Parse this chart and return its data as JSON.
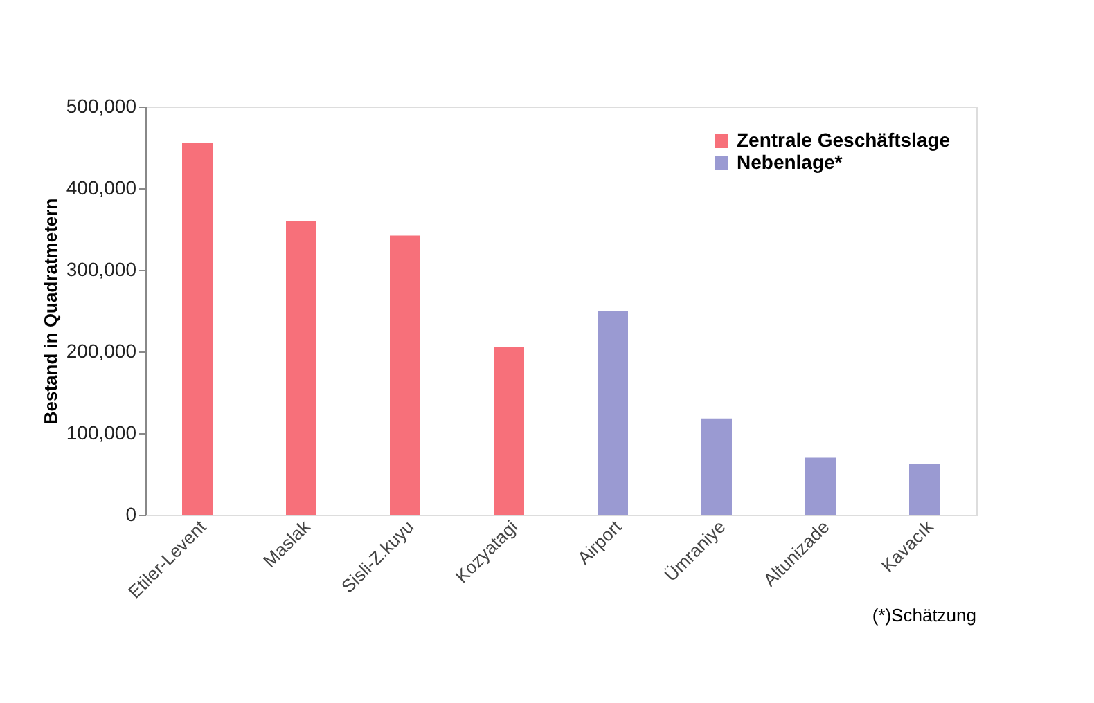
{
  "chart_data": {
    "type": "bar",
    "ylabel": "Bestand in Quadratmetern",
    "categories": [
      "Etiler-Levent",
      "Maslak",
      "Sisli-Z.kuyu",
      "Kozyatagi",
      "Airport",
      "Ümraniye",
      "Altunizade",
      "Kavacık"
    ],
    "series": [
      {
        "name": "Zentrale Geschäftslage",
        "color": "#f7707a",
        "values": [
          455000,
          360000,
          342000,
          205000,
          null,
          null,
          null,
          null
        ]
      },
      {
        "name": "Nebenlage*",
        "color": "#9a9ad2",
        "values": [
          null,
          null,
          null,
          null,
          250000,
          118000,
          70000,
          62000
        ]
      }
    ],
    "ylim": [
      0,
      500000
    ],
    "yticks": [
      {
        "value": 0,
        "label": "0"
      },
      {
        "value": 100000,
        "label": "100,000"
      },
      {
        "value": 200000,
        "label": "200,000"
      },
      {
        "value": 300000,
        "label": "300,000"
      },
      {
        "value": 400000,
        "label": "400,000"
      },
      {
        "value": 500000,
        "label": "500,000"
      }
    ],
    "grid": false,
    "legend": "top right",
    "annotations": [
      "(*)Schätzung"
    ]
  }
}
